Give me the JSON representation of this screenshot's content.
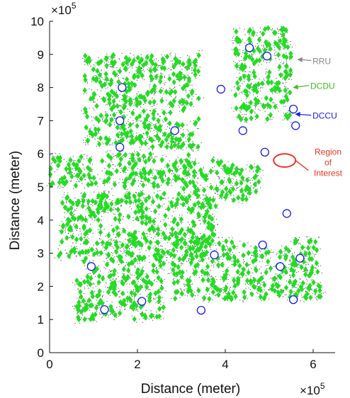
{
  "chart_data": {
    "type": "scatter",
    "xlabel": "Distance (meter)",
    "ylabel": "Distance (meter)",
    "x_multiplier_label": "×10",
    "x_multiplier_exp": "5",
    "y_multiplier_label": "×10",
    "y_multiplier_exp": "5",
    "xlim": [
      0,
      6.5
    ],
    "ylim": [
      0,
      10
    ],
    "x_tick_values": [
      0,
      2,
      4,
      6
    ],
    "x_tick_labels": [
      "0",
      "2",
      "4",
      "6"
    ],
    "y_tick_values": [
      0,
      1,
      2,
      3,
      4,
      5,
      6,
      7,
      8,
      9,
      10
    ],
    "y_tick_labels": [
      "0",
      "1",
      "2",
      "3",
      "4",
      "5",
      "6",
      "7",
      "8",
      "9",
      "10"
    ],
    "grid": false,
    "scale_note": "axis values shown in units of 10^5 meters",
    "series": [
      {
        "name": "RRU",
        "marker": "dot",
        "color": "#444444",
        "density_note": "dense cloud of small gray dots covering the same region as DCDU",
        "points": []
      },
      {
        "name": "DCDU",
        "marker": "diamond",
        "color": "#22dd22",
        "density_note": "approx. 1000+ green diamonds; clusters enumerated below as bounding regions in data units",
        "clusters": [
          {
            "x": [
              0.0,
              3.2
            ],
            "y": [
              5.0,
              6.0
            ]
          },
          {
            "x": [
              0.2,
              3.8
            ],
            "y": [
              2.8,
              4.8
            ]
          },
          {
            "x": [
              0.6,
              2.6
            ],
            "y": [
              1.0,
              2.8
            ]
          },
          {
            "x": [
              3.0,
              4.8
            ],
            "y": [
              4.6,
              5.8
            ]
          },
          {
            "x": [
              2.8,
              6.2
            ],
            "y": [
              1.6,
              3.4
            ]
          },
          {
            "x": [
              4.2,
              5.5
            ],
            "y": [
              7.0,
              9.8
            ]
          },
          {
            "x": [
              0.8,
              3.4
            ],
            "y": [
              6.2,
              9.0
            ]
          }
        ]
      },
      {
        "name": "DCCU",
        "marker": "circle-open",
        "color": "#1a1aee",
        "points": [
          [
            1.65,
            8.0
          ],
          [
            1.6,
            7.0
          ],
          [
            1.6,
            6.2
          ],
          [
            2.85,
            6.7
          ],
          [
            3.9,
            7.95
          ],
          [
            4.55,
            9.2
          ],
          [
            4.95,
            8.95
          ],
          [
            5.55,
            7.35
          ],
          [
            5.6,
            6.85
          ],
          [
            4.4,
            6.7
          ],
          [
            4.9,
            6.05
          ],
          [
            5.4,
            4.2
          ],
          [
            4.85,
            3.25
          ],
          [
            3.75,
            2.95
          ],
          [
            5.7,
            2.85
          ],
          [
            5.25,
            2.6
          ],
          [
            0.95,
            2.6
          ],
          [
            2.1,
            1.55
          ],
          [
            1.25,
            1.3
          ],
          [
            3.45,
            1.28
          ],
          [
            5.55,
            1.6
          ]
        ]
      }
    ],
    "annotations": [
      {
        "text": "RRU",
        "color": "#888888",
        "arrow_to": [
          5.65,
          8.85
        ],
        "text_at": [
          6.05,
          8.75
        ]
      },
      {
        "text": "DCDU",
        "color": "#44bb22",
        "arrow_to": [
          5.55,
          8.0
        ],
        "text_at": [
          6.0,
          8.0
        ]
      },
      {
        "text": "DCCU",
        "color": "#1a1aee",
        "arrow_to": [
          5.6,
          7.2
        ],
        "text_at": [
          6.05,
          7.1
        ]
      },
      {
        "text_lines": [
          "Region",
          "of",
          "Interest"
        ],
        "color": "#ee3322",
        "ellipse_center": [
          5.35,
          5.8
        ],
        "ellipse_radii": [
          0.25,
          0.2
        ],
        "text_at": [
          6.1,
          5.8
        ]
      }
    ],
    "legend": "none (inline arrow annotations on the right)"
  }
}
